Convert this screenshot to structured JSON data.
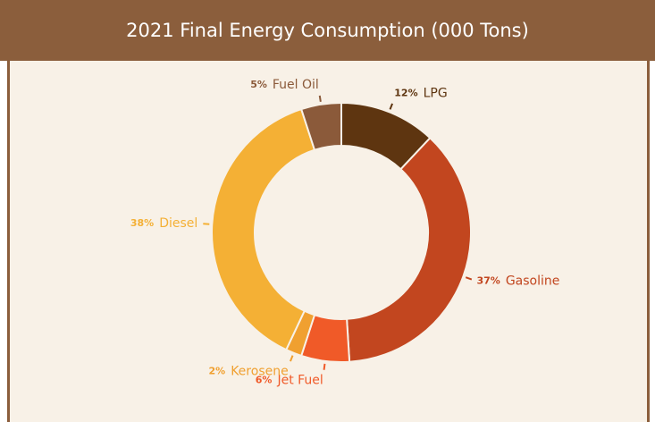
{
  "chart_data": {
    "type": "pie",
    "title": "2021 Final Energy Consumption (000 Tons)",
    "categories": [
      "LPG",
      "Gasoline",
      "Jet Fuel",
      "Kerosene",
      "Diesel",
      "Fuel Oil"
    ],
    "values": [
      12,
      37,
      6,
      2,
      38,
      5
    ],
    "value_labels": [
      "12%",
      "37%",
      "6%",
      "2%",
      "38%",
      "5%"
    ],
    "colors": [
      "#5e3510",
      "#c2461f",
      "#f05a28",
      "#f0a030",
      "#f4b035",
      "#8b5a3a"
    ]
  }
}
